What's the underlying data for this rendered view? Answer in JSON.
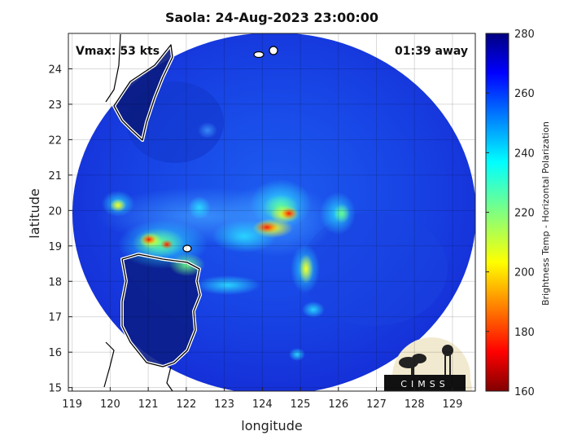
{
  "title": "Saola: 24-Aug-2023 23:00:00",
  "annotations": {
    "vmax": "Vmax: 53 kts",
    "time_away": "01:39 away"
  },
  "logo": {
    "text": "CIMSS"
  },
  "axes": {
    "xlabel": "longitude",
    "ylabel": "latitude",
    "x_ticks": [
      "119",
      "120",
      "121",
      "122",
      "123",
      "124",
      "125",
      "126",
      "127",
      "128",
      "129"
    ],
    "y_ticks": [
      "15",
      "16",
      "17",
      "18",
      "19",
      "20",
      "21",
      "22",
      "23",
      "24"
    ],
    "xlim": [
      118.9,
      129.6
    ],
    "ylim": [
      14.9,
      25.0
    ],
    "grid": true
  },
  "colorbar": {
    "label": "Brightness Temp - Horizontal Polarization",
    "ticks": [
      "160",
      "180",
      "200",
      "220",
      "240",
      "260",
      "280"
    ],
    "range": [
      160,
      280
    ],
    "colormap": "jet"
  },
  "chart_data": {
    "type": "heatmap",
    "title": "Saola: 24-Aug-2023 23:00:00",
    "xlabel": "longitude",
    "ylabel": "latitude",
    "xlim": [
      118.9,
      129.6
    ],
    "ylim": [
      14.9,
      25.0
    ],
    "swath_center": [
      124.3,
      19.8
    ],
    "value_range": [
      160,
      280
    ],
    "features": [
      {
        "name": "eyewall-band",
        "lon": 124.2,
        "lat": 19.5,
        "tb": 195
      },
      {
        "name": "north-band",
        "lon": 124.5,
        "lat": 20.1,
        "tb": 205
      },
      {
        "name": "luzon-strait-cell",
        "lon": 121.0,
        "lat": 19.1,
        "tb": 190
      },
      {
        "name": "west-cell",
        "lon": 120.2,
        "lat": 20.1,
        "tb": 205
      },
      {
        "name": "south-band",
        "lon": 125.1,
        "lat": 18.1,
        "tb": 210
      },
      {
        "name": "east-band",
        "lon": 126.0,
        "lat": 19.9,
        "tb": 225
      }
    ]
  }
}
